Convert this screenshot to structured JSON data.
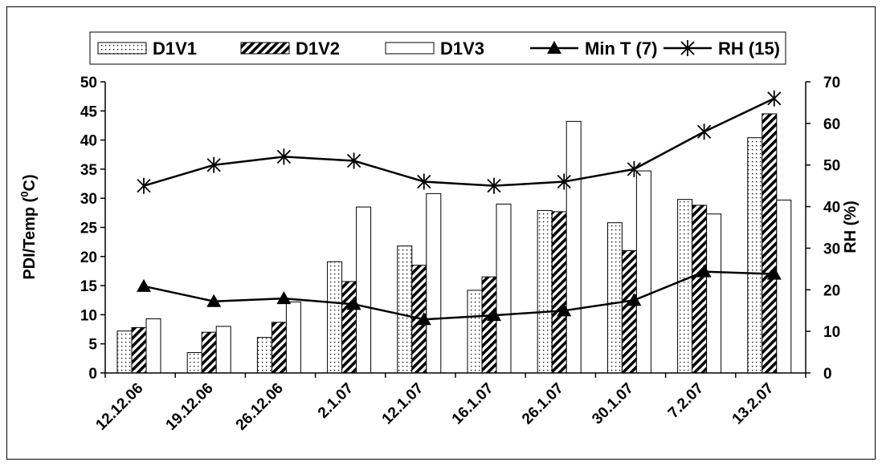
{
  "chart_data": {
    "type": "bar",
    "categories": [
      "12.12.06",
      "19.12.06",
      "26.12.06",
      "2.1.07",
      "12.1.07",
      "16.1.07",
      "26.1.07",
      "30.1.07",
      "7.2.07",
      "13.2.07"
    ],
    "series": [
      {
        "name": "D1V1",
        "kind": "bar",
        "axis": "left",
        "pattern": "dots",
        "values": [
          7.2,
          3.5,
          6.1,
          19.1,
          21.8,
          14.2,
          27.9,
          25.8,
          29.8,
          40.4
        ]
      },
      {
        "name": "D1V2",
        "kind": "bar",
        "axis": "left",
        "pattern": "diagonal-hatch",
        "values": [
          7.8,
          7.0,
          8.7,
          15.7,
          18.5,
          16.5,
          27.7,
          21.0,
          28.8,
          44.5
        ]
      },
      {
        "name": "D1V3",
        "kind": "bar",
        "axis": "left",
        "pattern": "white",
        "values": [
          9.3,
          8.0,
          12.2,
          28.5,
          30.8,
          29.0,
          43.2,
          34.7,
          27.3,
          29.7
        ]
      },
      {
        "name": "Min T (7)",
        "kind": "line",
        "axis": "left",
        "marker": "triangle",
        "values": [
          14.9,
          12.3,
          12.8,
          11.8,
          9.2,
          9.9,
          10.7,
          12.5,
          17.4,
          17.0
        ]
      },
      {
        "name": "RH (15)",
        "kind": "line",
        "axis": "right",
        "marker": "asterisk",
        "values": [
          45,
          50,
          52,
          51,
          46,
          45,
          46,
          49,
          58,
          66
        ]
      }
    ],
    "ylabel": "PDI/Temp (⁰C)",
    "ylabel_left_main": "PDI/Temp (",
    "ylabel_left_sup": "0",
    "ylabel_left_tail": "C)",
    "ylim": [
      0,
      50
    ],
    "yticks": [
      "0",
      "5",
      "10",
      "15",
      "20",
      "25",
      "30",
      "35",
      "40",
      "45",
      "50"
    ],
    "y2label": "RH (%)",
    "y2lim": [
      0,
      70
    ],
    "y2ticks": [
      "0",
      "10",
      "20",
      "30",
      "40",
      "50",
      "60",
      "70"
    ],
    "legend_position": "top",
    "grid": false
  }
}
